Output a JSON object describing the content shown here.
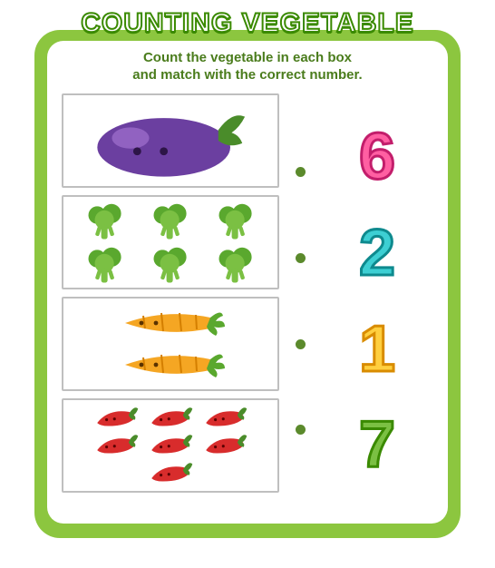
{
  "card": {
    "bg_color": "#8cc63f",
    "inner_bg": "#ffffff",
    "border_radius": 28
  },
  "title": {
    "text": "COUNTING VEGETABLE",
    "fill": "#ffffff",
    "stroke": "#3a8a00",
    "fontsize": 30
  },
  "subtitle": {
    "line1": "Count the vegetable in each box",
    "line2": "and match with the correct number.",
    "color": "#4a7c1c",
    "fontsize": 15
  },
  "boxes": [
    {
      "vegetable": "eggplant",
      "count": 1,
      "primary_color": "#6b3fa0",
      "accent_color": "#4a8c2a"
    },
    {
      "vegetable": "broccoli",
      "count": 6,
      "primary_color": "#5aa82e",
      "accent_color": "#7bc043"
    },
    {
      "vegetable": "carrot",
      "count": 2,
      "primary_color": "#f5a623",
      "accent_color": "#5aa82e"
    },
    {
      "vegetable": "chili",
      "count": 7,
      "primary_color": "#d82c2c",
      "accent_color": "#4a8c2a"
    }
  ],
  "dot_color": "#5b8a2c",
  "numbers": [
    {
      "value": "6",
      "fill": "#ff5fa2",
      "stroke": "#c21e6b"
    },
    {
      "value": "2",
      "fill": "#3dcfd3",
      "stroke": "#0e8a8e"
    },
    {
      "value": "1",
      "fill": "#ffcf3f",
      "stroke": "#d98c00"
    },
    {
      "value": "7",
      "fill": "#7bc043",
      "stroke": "#3a8a00"
    }
  ],
  "box_border_color": "#bfbfbf"
}
